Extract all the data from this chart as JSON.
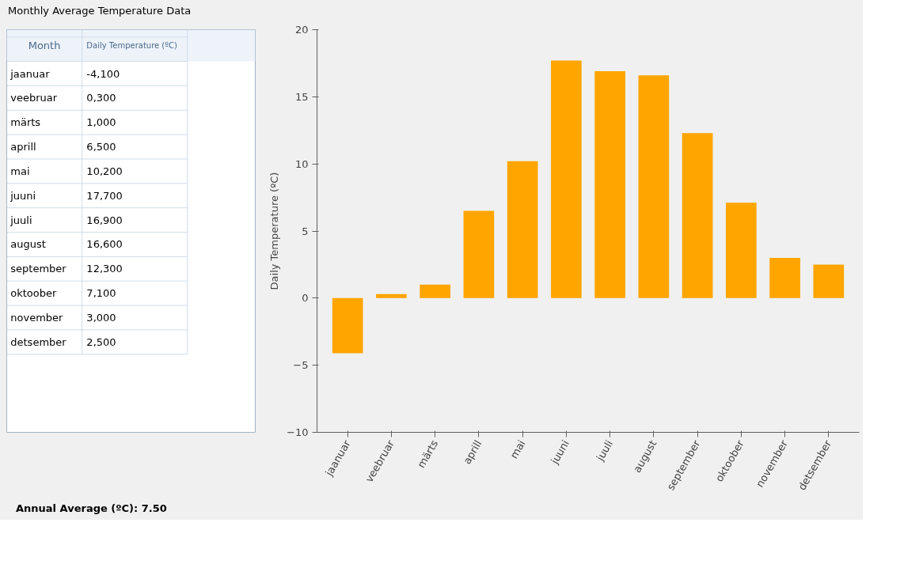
{
  "chart_data": [
    {
      "type": "other",
      "title": "Monthly Average Temperature Data",
      "annotations": [
        "Month",
        "Daily Temperature (ºC)",
        "jaanuar",
        "-4,100",
        "veebruar",
        "0,300",
        "märts",
        "1,000",
        "aprill",
        "6,500",
        "mai",
        "10,200",
        "juuni",
        "17,700",
        "juuli",
        "16,900",
        "august",
        "16,600",
        "september",
        "12,300",
        "oktoober",
        "7,100",
        "november",
        "3,000",
        "detsember",
        "2,500"
      ]
    },
    {
      "type": "bar",
      "ylabel": "Daily Temperature (ºC)",
      "categories": [
        "jaanuar",
        "veebruar",
        "märts",
        "aprill",
        "mai",
        "juuni",
        "juuli",
        "august",
        "september",
        "oktoober",
        "november",
        "detsember"
      ],
      "values": [
        -4.1,
        0.3,
        1.0,
        6.5,
        10.2,
        17.7,
        16.9,
        16.6,
        12.3,
        7.1,
        3.0,
        2.5
      ],
      "color": "#ffa500",
      "ylim": [
        -10,
        20
      ],
      "yticks": [
        -10,
        -5,
        0,
        5,
        10,
        15,
        20
      ],
      "grid": false,
      "annotations": [
        "Annual Average (ºC): 7.50"
      ]
    }
  ]
}
